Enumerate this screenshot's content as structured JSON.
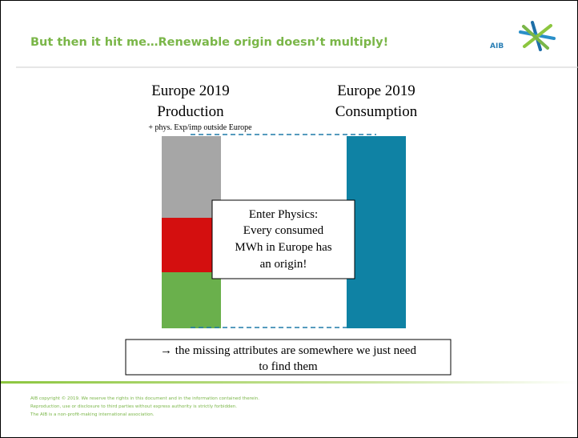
{
  "header": {
    "title": "But then it hit me…Renewable origin doesn’t multiply!",
    "logo": "AIB"
  },
  "production": {
    "lines": [
      "Europe 2019",
      "Production"
    ],
    "note": "+ phys. Exp/imp outside Europe"
  },
  "consumption": {
    "lines": [
      "Europe 2019",
      "Consumption"
    ]
  },
  "callout": {
    "lines": [
      "Enter Physics:",
      "Every consumed",
      "MWh in Europe has",
      "an origin!"
    ]
  },
  "conclusion": {
    "lines": [
      "→ the missing attributes are somewhere we just need",
      "to find them"
    ]
  },
  "footer": {
    "lines": [
      "AIB copyright © 2019. We reserve the rights in this document and in the information contained therein.",
      "Reproduction, use or disclosure to third parties without express authority is strictly forbidden.",
      "The AIB is a non-profit-making international association."
    ]
  }
}
